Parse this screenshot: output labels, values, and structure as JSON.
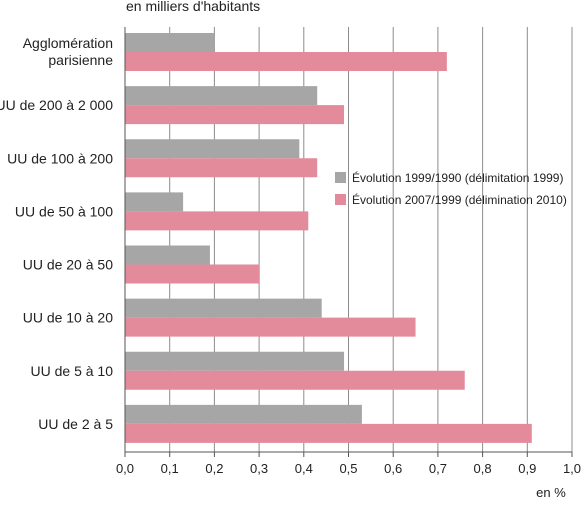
{
  "chart_data": {
    "type": "bar",
    "orientation": "horizontal",
    "title": "en milliers d'habitants",
    "xlabel": "en %",
    "xlim": [
      0,
      1.0
    ],
    "x_ticks": [
      0,
      0.1,
      0.2,
      0.3,
      0.4,
      0.5,
      0.6,
      0.7,
      0.8,
      0.9,
      1.0
    ],
    "x_tick_labels": [
      "0,0",
      "0,1",
      "0,2",
      "0,3",
      "0,4",
      "0,5",
      "0,6",
      "0,7",
      "0,8",
      "0,9",
      "1,0"
    ],
    "grid": "vertical",
    "legend_position": "right-middle",
    "categories": [
      "Agglomération parisienne",
      "UU de 200 à 2 000",
      "UU de 100 à 200",
      "UU de 50 à 100",
      "UU de 20 à 50",
      "UU de 10 à 20",
      "UU de 5 à 10",
      "UU de 2 à 5"
    ],
    "series": [
      {
        "name": "Évolution 1999/1990 (délimitation 1999)",
        "color": "#a6a6a6",
        "values": [
          0.2,
          0.43,
          0.39,
          0.13,
          0.19,
          0.44,
          0.49,
          0.53
        ]
      },
      {
        "name": "Évolution 2007/1999 (délimination 2010)",
        "color": "#e38a9b",
        "values": [
          0.72,
          0.49,
          0.43,
          0.41,
          0.3,
          0.65,
          0.76,
          0.91
        ]
      }
    ]
  }
}
